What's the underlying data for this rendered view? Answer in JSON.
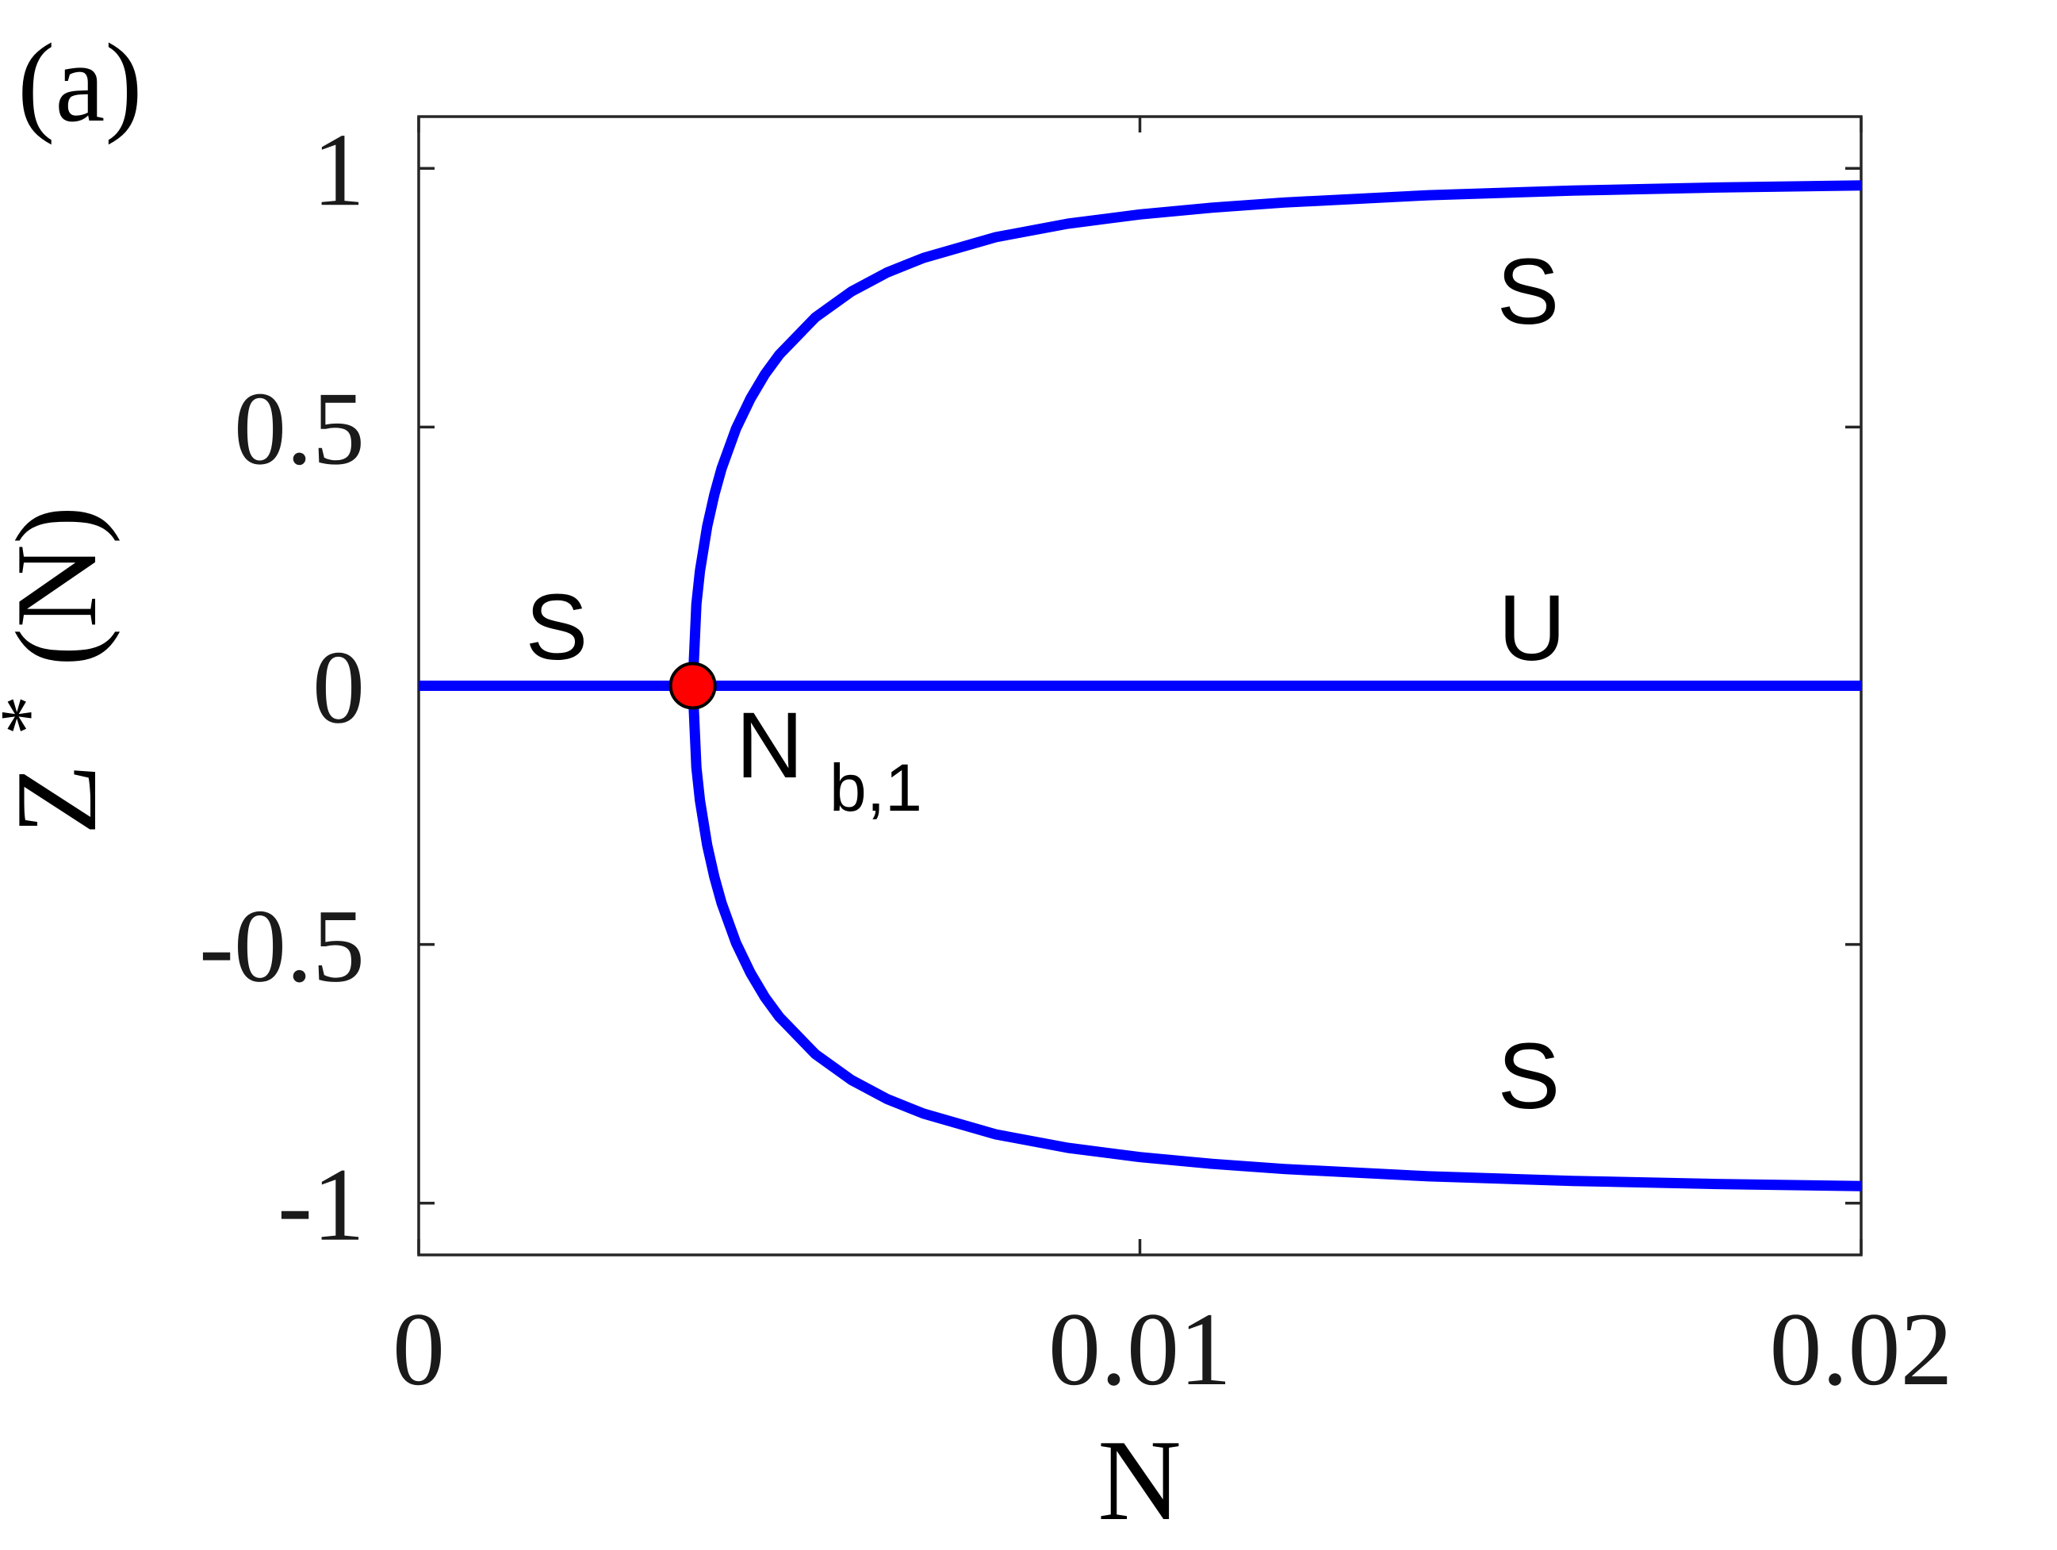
{
  "figure": {
    "panel_label": "(a)"
  },
  "chart_data": {
    "type": "line",
    "title": "",
    "xlabel": "N",
    "ylabel": "Z*(N)",
    "ylabel_parts": {
      "base": "Z",
      "sup": "*",
      "rest": "(N)"
    },
    "xlim": [
      0,
      0.02
    ],
    "ylim": [
      -1.1,
      1.1
    ],
    "grid": false,
    "box": true,
    "legend_position": "none",
    "xticks": [
      {
        "v": 0,
        "label": "0"
      },
      {
        "v": 0.01,
        "label": "0.01"
      },
      {
        "v": 0.02,
        "label": "0.02"
      }
    ],
    "yticks": [
      {
        "v": -1,
        "label": "-1"
      },
      {
        "v": -0.5,
        "label": "-0.5"
      },
      {
        "v": 0,
        "label": "0"
      },
      {
        "v": 0.5,
        "label": "0.5"
      },
      {
        "v": 1,
        "label": "1"
      }
    ],
    "colors": {
      "curve": "#0000ff",
      "point_fill": "#ff0000",
      "point_edge": "#000000",
      "axis": "#262626",
      "tick_label": "#1a1a1a",
      "annotation": "#000000"
    },
    "line_width": 13,
    "bifurcation_point": {
      "N": 0.0038,
      "Z": 0,
      "marker": "filled-circle",
      "radius_px": 28
    },
    "point_label": {
      "main": "N",
      "sub": "b,1",
      "N": 0.0044,
      "Z": -0.175
    },
    "series": [
      {
        "name": "middle-branch",
        "x": [
          0,
          0.02
        ],
        "y": [
          0,
          0
        ]
      },
      {
        "name": "upper-branch",
        "x": [
          0.0038,
          0.00385,
          0.0039,
          0.004,
          0.0041,
          0.0042,
          0.0044,
          0.0046,
          0.0048,
          0.005,
          0.0055,
          0.006,
          0.0065,
          0.007,
          0.008,
          0.009,
          0.01,
          0.011,
          0.012,
          0.014,
          0.016,
          0.018,
          0.02
        ],
        "y": [
          0,
          0.158,
          0.222,
          0.308,
          0.37,
          0.42,
          0.497,
          0.555,
          0.602,
          0.64,
          0.712,
          0.762,
          0.799,
          0.827,
          0.867,
          0.893,
          0.911,
          0.924,
          0.934,
          0.948,
          0.957,
          0.963,
          0.967
        ]
      },
      {
        "name": "lower-branch",
        "x": [
          0.0038,
          0.00385,
          0.0039,
          0.004,
          0.0041,
          0.0042,
          0.0044,
          0.0046,
          0.0048,
          0.005,
          0.0055,
          0.006,
          0.0065,
          0.007,
          0.008,
          0.009,
          0.01,
          0.011,
          0.012,
          0.014,
          0.016,
          0.018,
          0.02
        ],
        "y": [
          0,
          -0.158,
          -0.222,
          -0.308,
          -0.37,
          -0.42,
          -0.497,
          -0.555,
          -0.602,
          -0.64,
          -0.712,
          -0.762,
          -0.799,
          -0.827,
          -0.867,
          -0.893,
          -0.911,
          -0.924,
          -0.934,
          -0.948,
          -0.957,
          -0.963,
          -0.967
        ]
      }
    ],
    "annotations": [
      {
        "text": "S",
        "N": 0.00191,
        "Z": 0.115
      },
      {
        "text": "S",
        "N": 0.01538,
        "Z": 0.762
      },
      {
        "text": "U",
        "N": 0.01544,
        "Z": 0.112
      },
      {
        "text": "S",
        "N": 0.0154,
        "Z": -0.755
      }
    ]
  }
}
